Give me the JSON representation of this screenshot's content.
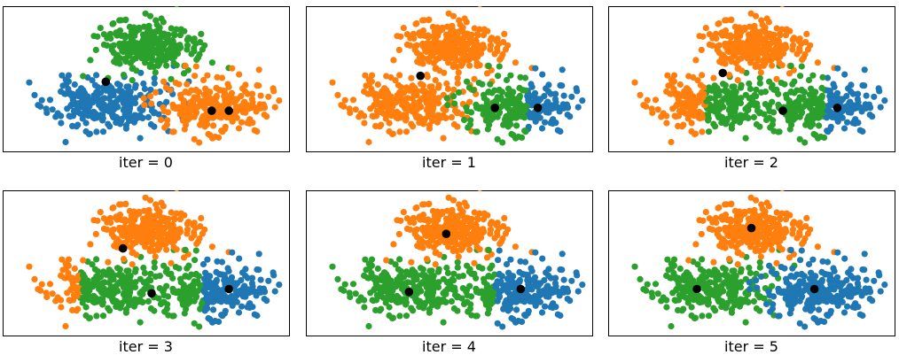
{
  "colors": {
    "blue": "#1f77b4",
    "orange": "#ff7f0e",
    "green": "#2ca02c",
    "centroid": "#000000"
  },
  "chart_data": {
    "type": "scatter",
    "description_units": "x and y in a shared unitless coordinate space (no axes or ticks shown); y increases upward",
    "xlim": [
      0,
      10
    ],
    "ylim": [
      0,
      5
    ],
    "grid": false,
    "clusters": [
      {
        "id": "A",
        "center": [
          3.6,
          1.6
        ],
        "spread": [
          1.0,
          0.45
        ],
        "count": 260,
        "seed": 11
      },
      {
        "id": "B",
        "center": [
          5.0,
          3.6
        ],
        "spread": [
          0.85,
          0.45
        ],
        "count": 260,
        "seed": 23
      },
      {
        "id": "C",
        "center": [
          7.5,
          1.55
        ],
        "spread": [
          0.95,
          0.45
        ],
        "count": 260,
        "seed": 37
      }
    ],
    "panels": [
      {
        "label": "iter = 0",
        "centroids": [
          {
            "color": "blue",
            "x": 3.6,
            "y": 2.4
          },
          {
            "color": "green",
            "x": 7.3,
            "y": 1.4
          },
          {
            "color": "orange",
            "x": 7.9,
            "y": 1.4
          }
        ],
        "assignment": {
          "A": "blue",
          "B": "green",
          "C": "orange"
        }
      },
      {
        "label": "iter = 1",
        "centroids": [
          {
            "color": "orange",
            "x": 4.0,
            "y": 2.6
          },
          {
            "color": "green",
            "x": 6.6,
            "y": 1.5
          },
          {
            "color": "blue",
            "x": 8.1,
            "y": 1.5
          }
        ],
        "assignment": {
          "A": "orange",
          "B": "orange",
          "C": {
            "split_x": 7.7,
            "left": "green",
            "right": "blue"
          }
        }
      },
      {
        "label": "iter = 2",
        "centroids": [
          {
            "color": "orange",
            "x": 4.0,
            "y": 2.7
          },
          {
            "color": "green",
            "x": 6.1,
            "y": 1.4
          },
          {
            "color": "blue",
            "x": 8.0,
            "y": 1.5
          }
        ],
        "assignment": {
          "A": {
            "split_x": 3.4,
            "left": "orange",
            "right": "green"
          },
          "B": "orange",
          "C": {
            "split_x": 7.6,
            "left": "green",
            "right": "blue"
          }
        }
      },
      {
        "label": "iter = 3",
        "centroids": [
          {
            "color": "orange",
            "x": 4.2,
            "y": 3.0
          },
          {
            "color": "green",
            "x": 5.2,
            "y": 1.45
          },
          {
            "color": "blue",
            "x": 7.9,
            "y": 1.6
          }
        ],
        "assignment": {
          "A": {
            "split_x": 2.7,
            "left": "orange",
            "right": "green"
          },
          "B": "orange",
          "C": {
            "split_x": 7.0,
            "left": "green",
            "right": "blue"
          }
        }
      },
      {
        "label": "iter = 4",
        "centroids": [
          {
            "color": "orange",
            "x": 4.9,
            "y": 3.5
          },
          {
            "color": "green",
            "x": 3.6,
            "y": 1.5
          },
          {
            "color": "blue",
            "x": 7.5,
            "y": 1.6
          }
        ],
        "assignment": {
          "A": "green",
          "B": "orange",
          "C": {
            "split_x": 6.6,
            "left": "green",
            "right": "blue"
          }
        }
      },
      {
        "label": "iter = 5",
        "centroids": [
          {
            "color": "orange",
            "x": 5.0,
            "y": 3.7
          },
          {
            "color": "green",
            "x": 3.1,
            "y": 1.6
          },
          {
            "color": "blue",
            "x": 7.2,
            "y": 1.6
          }
        ],
        "assignment": {
          "A": "green",
          "B": "orange",
          "C": "blue"
        }
      }
    ]
  }
}
